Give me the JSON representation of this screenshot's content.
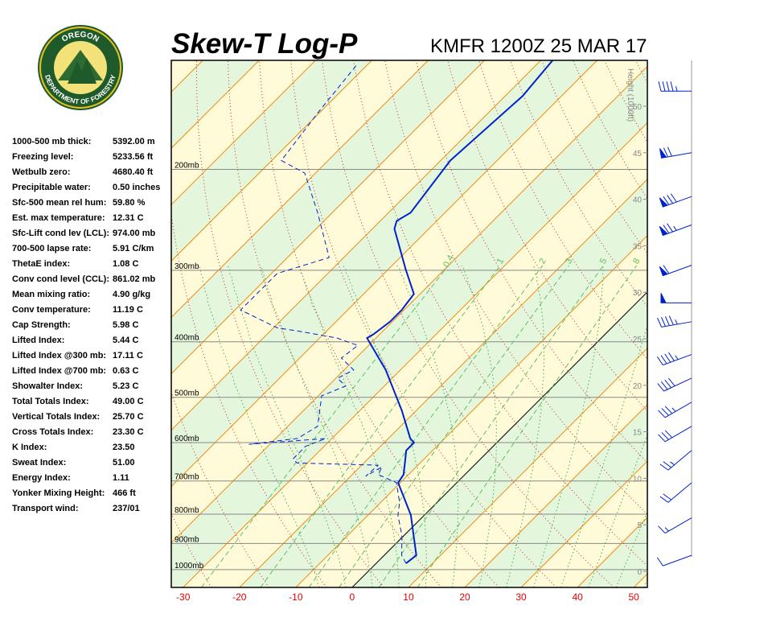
{
  "logo": {
    "top": "OREGON",
    "bottom": "DEPARTMENT OF FORESTRY"
  },
  "stats": {
    "rows": [
      [
        "1000-500 mb thick:",
        "5392.00 m"
      ],
      [
        "Freezing level:",
        "5233.56 ft"
      ],
      [
        "Wetbulb zero:",
        "4680.40 ft"
      ],
      [
        "Precipitable water:",
        "0.50 inches"
      ],
      [
        "Sfc-500 mean rel hum:",
        "59.80 %"
      ],
      [
        "Est. max temperature:",
        "12.31 C"
      ],
      [
        "Sfc-Lift cond lev (LCL):",
        "974.00 mb"
      ],
      [
        "700-500 lapse rate:",
        "5.91 C/km"
      ],
      [
        "ThetaE index:",
        "1.08 C"
      ],
      [
        "Conv cond level (CCL):",
        "861.02 mb"
      ],
      [
        "  Mean mixing ratio:",
        "4.90 g/kg"
      ],
      [
        "  Conv temperature:",
        "11.19 C"
      ],
      [
        "Cap Strength:",
        "5.98 C"
      ],
      [
        "Lifted Index:",
        "5.44 C"
      ],
      [
        "Lifted Index @300 mb:",
        "17.11 C"
      ],
      [
        "Lifted Index @700 mb:",
        "0.63 C"
      ],
      [
        "Showalter Index:",
        "5.23 C"
      ],
      [
        "Total Totals Index:",
        "49.00 C"
      ],
      [
        "  Vertical Totals Index:",
        "25.70 C"
      ],
      [
        "  Cross Totals Index:",
        "23.30 C"
      ],
      [
        "K Index:",
        "23.50"
      ],
      [
        "Sweat Index:",
        "51.00"
      ],
      [
        "Energy Index:",
        "1.11"
      ],
      [
        "Yonker Mixing Height:",
        "466 ft"
      ],
      [
        "Transport wind:",
        "237/01"
      ]
    ]
  },
  "chart_data": {
    "type": "skew-t",
    "title": "Skew-T Log-P",
    "subtitle": "KMFR 1200Z 25 MAR 17",
    "xlim": [
      -32.1,
      52.4
    ],
    "xticks": [
      -30,
      -20,
      -10,
      0,
      10,
      20,
      30,
      40,
      50
    ],
    "ylim": [
      1074,
      129
    ],
    "log_y": true,
    "yticks": [
      {
        "value": 1000,
        "label": "1000mb"
      },
      {
        "value": 900,
        "label": "900mb"
      },
      {
        "value": 800,
        "label": "800mb"
      },
      {
        "value": 700,
        "label": "700mb"
      },
      {
        "value": 600,
        "label": "600mb"
      },
      {
        "value": 500,
        "label": "500mb"
      },
      {
        "value": 400,
        "label": "400mb"
      },
      {
        "value": 300,
        "label": "300mb"
      },
      {
        "value": 200,
        "label": "200mb"
      }
    ],
    "y2_label": "Height (1000ft)",
    "y2ticks": [
      0,
      5,
      10,
      15,
      20,
      25,
      30,
      35,
      40,
      45,
      50
    ],
    "mixing_ratios": [
      0.4,
      1,
      2,
      3,
      5,
      8
    ],
    "series": [
      {
        "color": "#0022cc",
        "style": "solid",
        "y": [
          975,
          944,
          803,
          705,
          682,
          619,
          600,
          590,
          527,
          448,
          394,
          388,
          369,
          352,
          330,
          299,
          254,
          246,
          238,
          193,
          149,
          129
        ],
        "values": [
          5.3,
          5.7,
          -2.4,
          -10.4,
          -10.9,
          -14.7,
          -14.7,
          -16.1,
          -22.6,
          -32.6,
          -41.6,
          -41.1,
          -40.4,
          -40.4,
          -41.1,
          -46.9,
          -56.1,
          -57.1,
          -56.1,
          -58.3,
          -56.9,
          -57.9
        ]
      },
      {
        "color": "#0022cc",
        "style": "dashed",
        "y": [
          975,
          944,
          871,
          803,
          764,
          705,
          682,
          661,
          687,
          657,
          651,
          640,
          609,
          590,
          604,
          590,
          562,
          497,
          478,
          463,
          448,
          427,
          406,
          394,
          384,
          378,
          352,
          304,
          285,
          238,
          203,
          193,
          157,
          131
        ],
        "values": [
          5.3,
          3.1,
          -0.4,
          -4.7,
          -6.6,
          -10.7,
          -15.4,
          -16.1,
          -17.3,
          -17.1,
          -31.9,
          -33.3,
          -33.3,
          -31.1,
          -43.7,
          -36.1,
          -34.7,
          -39.4,
          -36.9,
          -39.7,
          -38.3,
          -42.6,
          -41.9,
          -46.9,
          -54.4,
          -59.4,
          -69.0,
          -69.0,
          -62.6,
          -72.6,
          -81.9,
          -88.3,
          -90.4,
          -91.9
        ]
      }
    ],
    "winds": {
      "pressure": [
        944,
        812,
        705,
        619,
        562,
        510,
        463,
        421,
        369,
        342,
        294,
        250,
        223,
        187,
        146
      ],
      "direction": [
        250,
        240,
        230,
        230,
        240,
        240,
        245,
        250,
        260,
        270,
        250,
        250,
        250,
        260,
        270
      ],
      "speed": [
        10,
        15,
        20,
        25,
        30,
        35,
        40,
        45,
        45,
        50,
        60,
        75,
        80,
        70,
        45
      ]
    }
  }
}
